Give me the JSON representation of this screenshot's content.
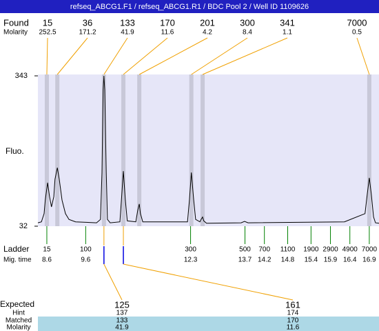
{
  "chart_data": {
    "type": "electropherogram",
    "title": "refseq_ABCG1.F1 / refseq_ABCG1.R1 / BDC Pool 2 / Well ID 1109626",
    "y_label": "Fluo.",
    "ylim": [
      32,
      343
    ],
    "yticks": [
      32,
      343
    ],
    "xlim": [
      8.37,
      17.15
    ],
    "trace": {
      "color": "#000000",
      "x": [
        8.37,
        8.46,
        8.53,
        8.56,
        8.62,
        8.67,
        8.72,
        8.78,
        8.81,
        8.87,
        8.92,
        8.99,
        9.08,
        9.17,
        9.34,
        9.88,
        9.98,
        10.02,
        10.05,
        10.07,
        10.09,
        10.13,
        10.16,
        10.23,
        10.48,
        10.52,
        10.57,
        10.62,
        10.67,
        10.89,
        10.94,
        10.98,
        11.01,
        11.07,
        12.22,
        12.27,
        12.32,
        12.38,
        12.43,
        12.54,
        12.57,
        12.61,
        12.64,
        12.71,
        13.6,
        13.69,
        13.78,
        16.26,
        16.79,
        16.85,
        16.9,
        16.95,
        17.01,
        17.06,
        17.15
      ],
      "y": [
        39,
        41,
        58,
        86,
        122,
        93,
        72,
        93,
        129,
        153,
        129,
        86,
        58,
        46,
        41,
        39,
        46,
        143,
        314,
        343,
        314,
        143,
        46,
        39,
        41,
        86,
        146,
        86,
        43,
        41,
        65,
        78,
        58,
        41,
        41,
        86,
        143,
        86,
        46,
        41,
        46,
        51,
        43,
        38,
        39,
        42,
        39,
        41,
        58,
        100,
        132,
        100,
        51,
        39,
        38
      ]
    },
    "found": {
      "label": "Found",
      "molarity_label": "Molarity",
      "color": "#f0a000",
      "band_color": "#c8c8d8",
      "sizes": [
        15,
        36,
        133,
        170,
        201,
        300,
        341,
        7000
      ],
      "molarity": [
        252.5,
        171.2,
        41.9,
        11.6,
        4.2,
        8.4,
        1.1,
        0.5
      ],
      "times": [
        8.6,
        8.87,
        10.07,
        10.57,
        10.98,
        12.32,
        12.61,
        16.9
      ]
    },
    "ladder": {
      "label": "Ladder",
      "time_label": "Mig. time",
      "color": "#008000",
      "sizes": [
        15,
        100,
        300,
        500,
        700,
        1100,
        1900,
        2900,
        4900,
        7000
      ],
      "times": [
        8.6,
        9.6,
        12.3,
        13.7,
        14.2,
        14.8,
        15.4,
        15.9,
        16.4,
        16.9
      ]
    },
    "expected": {
      "label": "Expected",
      "hint_label": "Hint",
      "matched_label": "Matched",
      "molarity_label": "Molarity",
      "sizes": [
        125,
        161
      ],
      "hint": [
        137,
        174
      ],
      "matched": [
        133,
        170
      ],
      "molarity": [
        41.9,
        11.6
      ]
    }
  }
}
